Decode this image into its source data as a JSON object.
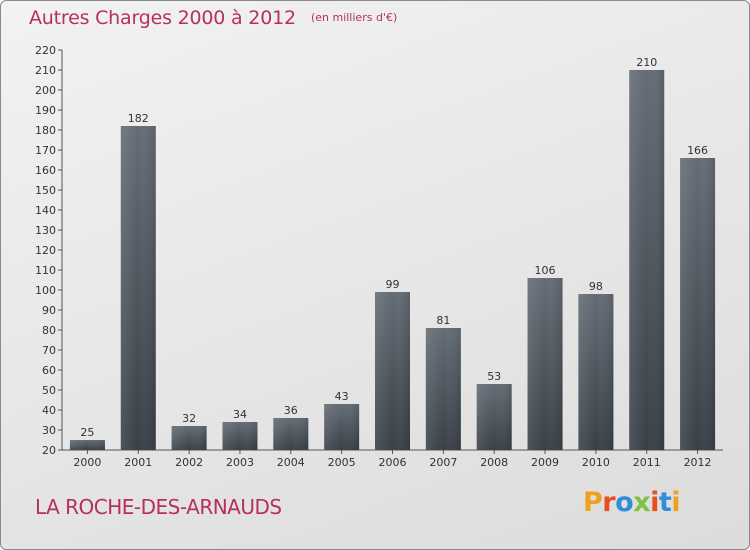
{
  "header": {
    "title": "Autres Charges 2000 à 2012",
    "subtitle": "(en milliers d'€)"
  },
  "footer": {
    "location": "LA ROCHE-DES-ARNAUDS",
    "brand": "Proxiti",
    "brand_colors": [
      "#f0a020",
      "#e94f1d",
      "#2e8fd8",
      "#7cc242",
      "#e94f1d",
      "#2e8fd8",
      "#f0a020"
    ]
  },
  "chart_data": {
    "type": "bar",
    "title": "Autres Charges 2000 à 2012",
    "subtitle": "(en milliers d'€)",
    "xlabel": "",
    "ylabel": "",
    "categories": [
      "2000",
      "2001",
      "2002",
      "2003",
      "2004",
      "2005",
      "2006",
      "2007",
      "2008",
      "2009",
      "2010",
      "2011",
      "2012"
    ],
    "values": [
      25,
      182,
      32,
      34,
      36,
      43,
      99,
      81,
      53,
      106,
      98,
      210,
      166
    ],
    "ylim": [
      20,
      220
    ],
    "ytick_step": 10,
    "grid": false,
    "legend": "none",
    "bar_color": "#3a4048",
    "bar_highlight": "#646c75"
  }
}
